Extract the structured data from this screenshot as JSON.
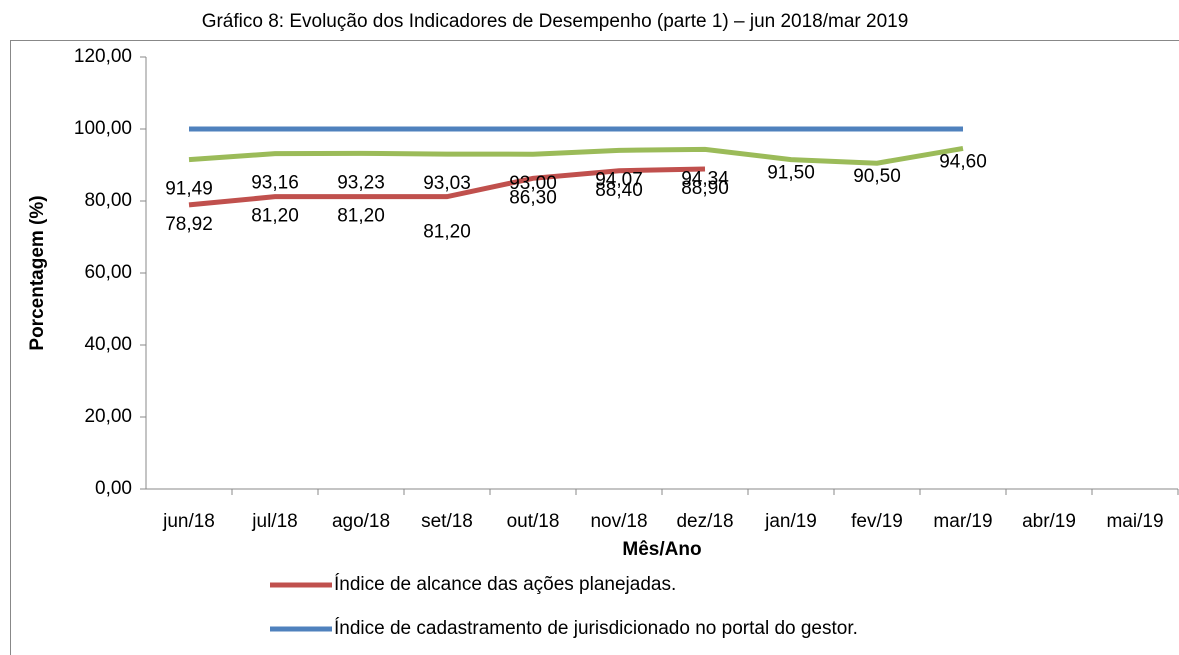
{
  "chart_data": {
    "type": "line",
    "title": "Gráfico 8: Evolução dos Indicadores de Desempenho (parte 1) – jun 2018/mar 2019",
    "x_label": "Mês/Ano",
    "y_label": "Porcentagem (%)",
    "categories": [
      "jun/18",
      "jul/18",
      "ago/18",
      "set/18",
      "out/18",
      "nov/18",
      "dez/18",
      "jan/19",
      "fev/19",
      "mar/19",
      "abr/19",
      "mai/19"
    ],
    "ylim": [
      0,
      120
    ],
    "yticks": [
      {
        "value": 0,
        "label": "0,00"
      },
      {
        "value": 20,
        "label": "20,00"
      },
      {
        "value": 40,
        "label": "40,00"
      },
      {
        "value": 60,
        "label": "60,00"
      },
      {
        "value": 80,
        "label": "80,00"
      },
      {
        "value": 100,
        "label": "100,00"
      },
      {
        "value": 120,
        "label": "120,00"
      }
    ],
    "grid": false,
    "series": [
      {
        "name": "Índice de alcance das ações planejadas.",
        "color": "#c0504d",
        "values": [
          78.92,
          81.2,
          81.2,
          81.2,
          86.3,
          88.4,
          88.9,
          null,
          null,
          null,
          null,
          null
        ],
        "value_labels": [
          "78,92",
          "81,20",
          "81,20",
          "81,20",
          "86,30",
          "88,40",
          "88,90",
          null,
          null,
          null,
          null,
          null
        ]
      },
      {
        "name": "Índice de cadastramento de jurisdicionado no portal do gestor.",
        "color": "#4f81bd",
        "values": [
          100,
          100,
          100,
          100,
          100,
          100,
          100,
          100,
          100,
          100,
          null,
          null
        ]
      },
      {
        "color": "#9bbb59",
        "values": [
          91.49,
          93.16,
          93.23,
          93.03,
          93.0,
          94.07,
          94.34,
          91.5,
          90.5,
          94.6,
          null,
          null
        ],
        "value_labels": [
          "91,49",
          "93,16",
          "93,23",
          "93,03",
          "93,00",
          "94,07",
          "94,34",
          "91,50",
          "90,50",
          "94,60",
          null,
          null
        ]
      }
    ]
  }
}
